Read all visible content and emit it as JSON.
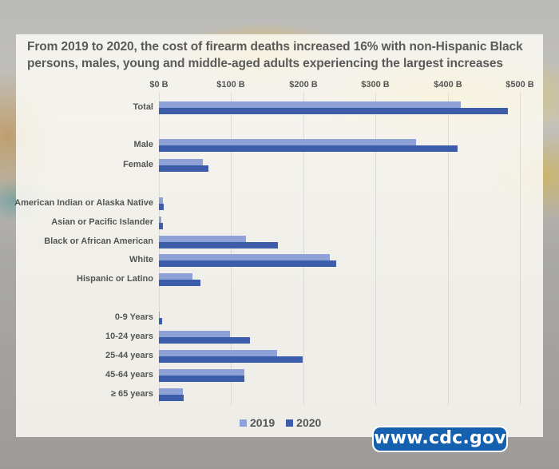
{
  "title": "From 2019 to 2020, the cost of firearm deaths increased 16% with non-Hispanic Black persons, males, young and middle-aged adults experiencing the largest increases",
  "axis": {
    "ticks": [
      "$0 B",
      "$100 B",
      "$200 B",
      "$300 B",
      "$400 B",
      "$500 B"
    ]
  },
  "legend": {
    "s2019": "2019",
    "s2020": "2020"
  },
  "colors": {
    "s2019": "#8fa2d7",
    "s2020": "#3d5dab",
    "badge": "#1561b0"
  },
  "badge": {
    "text": "www.cdc.gov"
  },
  "rows": [
    {
      "label": "Total",
      "v2019": 418,
      "v2020": 483
    },
    {
      "label": "Male",
      "v2019": 356,
      "v2020": 413
    },
    {
      "label": "Female",
      "v2019": 61,
      "v2020": 68
    },
    {
      "label": "American Indian or Alaska Native",
      "v2019": 6,
      "v2020": 7
    },
    {
      "label": "Asian or Pacific Islander",
      "v2019": 3,
      "v2020": 5
    },
    {
      "label": "Black or African American",
      "v2019": 120,
      "v2020": 165
    },
    {
      "label": "White",
      "v2019": 237,
      "v2020": 245
    },
    {
      "label": "Hispanic or Latino",
      "v2019": 46,
      "v2020": 58
    },
    {
      "label": "0-9 Years",
      "v2019": 1,
      "v2020": 4
    },
    {
      "label": "10-24 years",
      "v2019": 98,
      "v2020": 126
    },
    {
      "label": "25-44 years",
      "v2019": 163,
      "v2020": 199
    },
    {
      "label": "45-64 years",
      "v2019": 118,
      "v2020": 118
    },
    {
      "label": "≥ 65 years",
      "v2019": 33,
      "v2020": 34
    }
  ],
  "chart_data": {
    "type": "bar",
    "orientation": "horizontal",
    "title": "From 2019 to 2020, the cost of firearm deaths increased 16% with non-Hispanic Black persons, males, young and middle-aged adults experiencing the largest increases",
    "xlabel": "",
    "ylabel": "",
    "unit": "$ Billions",
    "xlim": [
      0,
      500
    ],
    "x_ticks": [
      "$0 B",
      "$100 B",
      "$200 B",
      "$300 B",
      "$400 B",
      "$500 B"
    ],
    "grid": true,
    "legend_position": "bottom",
    "categories": [
      "Total",
      "Male",
      "Female",
      "American Indian or Alaska Native",
      "Asian or Pacific Islander",
      "Black or African American",
      "White",
      "Hispanic or Latino",
      "0-9 Years",
      "10-24 years",
      "25-44 years",
      "45-64 years",
      "≥ 65 years"
    ],
    "series": [
      {
        "name": "2019",
        "values": [
          418,
          356,
          61,
          6,
          3,
          120,
          237,
          46,
          1,
          98,
          163,
          118,
          33
        ]
      },
      {
        "name": "2020",
        "values": [
          483,
          413,
          68,
          7,
          5,
          165,
          245,
          58,
          4,
          126,
          199,
          118,
          34
        ]
      }
    ]
  }
}
